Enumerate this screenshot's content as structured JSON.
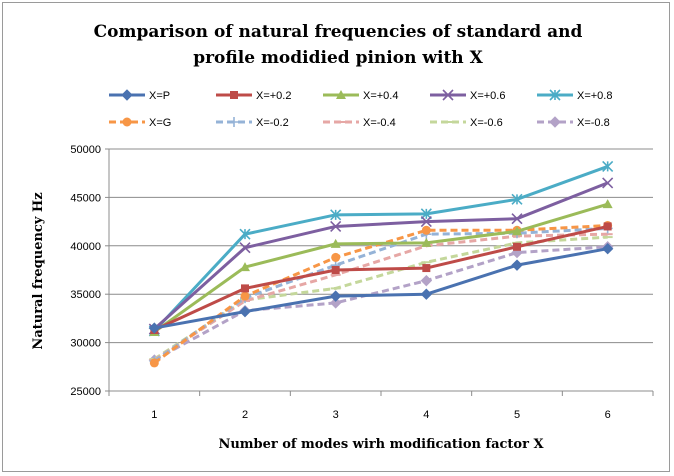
{
  "chart_data": {
    "type": "line",
    "title_lines": [
      "Comparison of natural frequencies of standard and",
      "profile modidied pinion with X"
    ],
    "xlabel": "Number of modes wirh modification factor X",
    "ylabel": "Natural frequency Hz",
    "categories": [
      "1",
      "2",
      "3",
      "4",
      "5",
      "6"
    ],
    "ylim": [
      25000,
      50000
    ],
    "yticks": [
      25000,
      30000,
      35000,
      40000,
      45000,
      50000
    ],
    "grid": "horizontal",
    "legend_position": "top",
    "series": [
      {
        "name": "X=P",
        "color": "#4a72b0",
        "dash": "solid",
        "marker": "diamond",
        "values": [
          31500,
          33200,
          34800,
          35000,
          38000,
          39700
        ]
      },
      {
        "name": "X=+0.2",
        "color": "#be4b48",
        "dash": "solid",
        "marker": "square",
        "values": [
          31300,
          35600,
          37500,
          37700,
          39900,
          42000
        ]
      },
      {
        "name": "X=+0.4",
        "color": "#9bbb59",
        "dash": "solid",
        "marker": "triangle",
        "values": [
          31100,
          37800,
          40200,
          40300,
          41500,
          44300
        ]
      },
      {
        "name": "X=+0.6",
        "color": "#7d5fa0",
        "dash": "solid",
        "marker": "x",
        "values": [
          31400,
          39800,
          42000,
          42500,
          42800,
          46500
        ]
      },
      {
        "name": "X=+0.8",
        "color": "#4bacc6",
        "dash": "solid",
        "marker": "star",
        "values": [
          31200,
          41200,
          43200,
          43300,
          44800,
          48200
        ]
      },
      {
        "name": "X=G",
        "color": "#f79646",
        "dash": "dashed",
        "marker": "circle",
        "values": [
          27900,
          34800,
          38800,
          41600,
          41600,
          42100
        ]
      },
      {
        "name": "X=-0.2",
        "color": "#95b3d7",
        "dash": "dashed",
        "marker": "plus",
        "values": [
          28100,
          34600,
          38000,
          41200,
          41300,
          41800
        ]
      },
      {
        "name": "X=-0.4",
        "color": "#e6a7a5",
        "dash": "dashed",
        "marker": "dash",
        "values": [
          28200,
          34300,
          37000,
          40000,
          41000,
          41200
        ]
      },
      {
        "name": "X=-0.6",
        "color": "#c4d79b",
        "dash": "dashed",
        "marker": "dash",
        "values": [
          28300,
          34400,
          35600,
          38300,
          40300,
          40900
        ]
      },
      {
        "name": "X=-0.8",
        "color": "#b3a2c7",
        "dash": "dashed",
        "marker": "diamond",
        "values": [
          28200,
          33300,
          34100,
          36400,
          39300,
          39900
        ]
      }
    ]
  }
}
